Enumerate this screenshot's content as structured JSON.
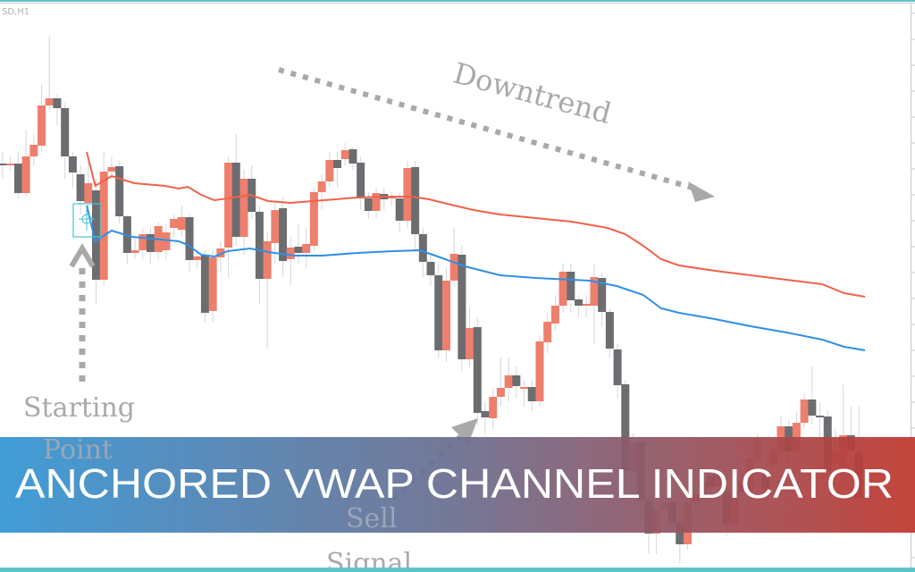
{
  "header": {
    "symbol_label": "SD,H1"
  },
  "annotations": {
    "downtrend": "Downtrend",
    "starting_1": "Starting",
    "starting_2": "Point",
    "sell_1": "Sell",
    "sell_2": "Signal"
  },
  "banner": {
    "title": "ANCHORED VWAP CHANNEL INDICATOR",
    "gradient_start": "#3596d4",
    "gradient_mid": "#6d6f90",
    "gradient_end": "#c0392f"
  },
  "colors": {
    "bull": "#ee7f6d",
    "bear": "#6b6d70",
    "upper_band": "#f0624a",
    "lower_band": "#2f8fe6",
    "anchor": "#45c3dc",
    "frame": "#5fc4c8",
    "annotation": "#a9a9a9"
  },
  "chart_data": {
    "type": "candlestick",
    "title": "",
    "xlabel": "",
    "ylabel": "",
    "grid": false,
    "candles_ohlc_note_fields": [
      "open",
      "close",
      "high",
      "low"
    ],
    "candles": [
      [
        457,
        455,
        470,
        440
      ],
      [
        455,
        457,
        465,
        450
      ],
      [
        457,
        424,
        470,
        418
      ],
      [
        424,
        465,
        495,
        420
      ],
      [
        465,
        478,
        490,
        455
      ],
      [
        477,
        522,
        545,
        470
      ],
      [
        522,
        530,
        600,
        515
      ],
      [
        530,
        519,
        535,
        500
      ],
      [
        519,
        465,
        525,
        440
      ],
      [
        465,
        447,
        470,
        430
      ],
      [
        445,
        415,
        455,
        400
      ],
      [
        413,
        435,
        460,
        405
      ],
      [
        427,
        327,
        440,
        300
      ],
      [
        327,
        448,
        470,
        320
      ],
      [
        448,
        453,
        465,
        440
      ],
      [
        454,
        398,
        460,
        390
      ],
      [
        398,
        357,
        400,
        345
      ],
      [
        357,
        360,
        375,
        350
      ],
      [
        360,
        378,
        385,
        350
      ],
      [
        378,
        358,
        385,
        345
      ],
      [
        358,
        387,
        392,
        350
      ],
      [
        360,
        380,
        390,
        350
      ],
      [
        385,
        395,
        400,
        375
      ],
      [
        383,
        397,
        410,
        375
      ],
      [
        397,
        349,
        400,
        335
      ],
      [
        349,
        353,
        360,
        340
      ],
      [
        354,
        290,
        360,
        280
      ],
      [
        292,
        352,
        360,
        280
      ],
      [
        352,
        362,
        370,
        335
      ],
      [
        363,
        458,
        465,
        330
      ],
      [
        458,
        375,
        490,
        365
      ],
      [
        375,
        440,
        450,
        355
      ],
      [
        440,
        403,
        455,
        395
      ],
      [
        403,
        328,
        410,
        300
      ],
      [
        328,
        370,
        380,
        250
      ],
      [
        368,
        405,
        415,
        345
      ],
      [
        407,
        348,
        420,
        330
      ],
      [
        350,
        363,
        375,
        320
      ],
      [
        364,
        357,
        390,
        345
      ],
      [
        357,
        367,
        385,
        340
      ],
      [
        365,
        425,
        430,
        360
      ],
      [
        425,
        437,
        445,
        405
      ],
      [
        437,
        461,
        470,
        430
      ],
      [
        461,
        452,
        470,
        430
      ],
      [
        462,
        472,
        480,
        455
      ],
      [
        473,
        457,
        475,
        450
      ],
      [
        458,
        418,
        465,
        405
      ],
      [
        418,
        404,
        425,
        395
      ],
      [
        404,
        424,
        430,
        395
      ],
      [
        423,
        417,
        430,
        405
      ],
      [
        419,
        420,
        425,
        410
      ],
      [
        418,
        393,
        425,
        380
      ],
      [
        393,
        452,
        460,
        385
      ],
      [
        453,
        378,
        460,
        360
      ],
      [
        378,
        347,
        385,
        330
      ],
      [
        347,
        332,
        355,
        320
      ],
      [
        332,
        248,
        345,
        240
      ],
      [
        248,
        326,
        340,
        235
      ],
      [
        326,
        356,
        385,
        320
      ],
      [
        355,
        238,
        365,
        225
      ],
      [
        238,
        273,
        295,
        230
      ],
      [
        274,
        178,
        285,
        165
      ],
      [
        180,
        173,
        190,
        155
      ],
      [
        172,
        196,
        205,
        160
      ],
      [
        196,
        206,
        240,
        185
      ],
      [
        206,
        220,
        240,
        190
      ],
      [
        220,
        208,
        230,
        195
      ],
      [
        206,
        207,
        215,
        185
      ],
      [
        207,
        191,
        215,
        180
      ],
      [
        191,
        258,
        265,
        185
      ],
      [
        257,
        280,
        290,
        245
      ],
      [
        278,
        298,
        310,
        270
      ],
      [
        298,
        336,
        345,
        290
      ],
      [
        336,
        304,
        345,
        290
      ],
      [
        305,
        298,
        310,
        285
      ],
      [
        298,
        300,
        310,
        285
      ],
      [
        298,
        330,
        345,
        255
      ],
      [
        329,
        291,
        335,
        275
      ],
      [
        291,
        250,
        295,
        240
      ],
      [
        249,
        209,
        255,
        195
      ],
      [
        210,
        113,
        215,
        100
      ],
      [
        113,
        145,
        155,
        100
      ],
      [
        145,
        80,
        150,
        65
      ],
      [
        80,
        43,
        85,
        20
      ],
      [
        43,
        70,
        75,
        20
      ],
      [
        70,
        78,
        85,
        55
      ],
      [
        78,
        55,
        85,
        45
      ],
      [
        55,
        31,
        60,
        10
      ],
      [
        31,
        78,
        85,
        25
      ],
      [
        78,
        87,
        95,
        70
      ],
      [
        87,
        100,
        110,
        80
      ],
      [
        108,
        95,
        115,
        85
      ],
      [
        95,
        110,
        120,
        85
      ],
      [
        90,
        53,
        95,
        40
      ],
      [
        53,
        90,
        100,
        45
      ],
      [
        100,
        90,
        110,
        85
      ],
      [
        90,
        127,
        135,
        80
      ],
      [
        127,
        147,
        155,
        115
      ],
      [
        108,
        92,
        115,
        80
      ],
      [
        120,
        135,
        145,
        110
      ],
      [
        135,
        163,
        175,
        125
      ],
      [
        163,
        135,
        170,
        120
      ],
      [
        135,
        167,
        180,
        130
      ],
      [
        167,
        193,
        200,
        160
      ],
      [
        193,
        175,
        230,
        165
      ],
      [
        175,
        173,
        190,
        110
      ],
      [
        174,
        113,
        180,
        100
      ],
      [
        120,
        135,
        160,
        110
      ],
      [
        113,
        153,
        210,
        100
      ],
      [
        153,
        136,
        185,
        120
      ],
      [
        135,
        83,
        185,
        70
      ]
    ],
    "series": [
      {
        "points": [
          [
            10.8,
            470
          ],
          [
            11.9,
            432
          ],
          [
            14.0,
            443
          ],
          [
            16.9,
            435
          ],
          [
            20.9,
            432
          ],
          [
            22.6,
            429
          ],
          [
            23.8,
            431
          ],
          [
            25.5,
            422
          ],
          [
            27.2,
            416
          ],
          [
            28.9,
            418
          ],
          [
            31.8,
            422
          ],
          [
            34.1,
            415
          ],
          [
            37.0,
            413
          ],
          [
            39.8,
            415
          ],
          [
            45.6,
            419
          ],
          [
            49.0,
            420
          ],
          [
            52.5,
            420
          ],
          [
            54.8,
            417
          ],
          [
            57.1,
            412
          ],
          [
            60.5,
            405
          ],
          [
            63.9,
            400
          ],
          [
            68.5,
            396
          ],
          [
            73.1,
            392
          ],
          [
            77.7,
            385
          ],
          [
            80.0,
            378
          ],
          [
            82.3,
            365
          ],
          [
            84.6,
            350
          ],
          [
            86.9,
            343
          ],
          [
            91.5,
            337
          ],
          [
            96.1,
            332
          ],
          [
            100.7,
            327
          ],
          [
            105.3,
            322
          ],
          [
            108.1,
            312
          ],
          [
            110.8,
            308
          ]
        ]
      },
      {
        "points": [
          [
            10.8,
            410
          ],
          [
            11.9,
            370
          ],
          [
            14.0,
            382
          ],
          [
            16.6,
            375
          ],
          [
            19.2,
            373
          ],
          [
            22.6,
            370
          ],
          [
            23.8,
            366
          ],
          [
            25.5,
            355
          ],
          [
            27.2,
            353
          ],
          [
            28.9,
            359
          ],
          [
            31.8,
            362
          ],
          [
            34.1,
            358
          ],
          [
            37.5,
            354
          ],
          [
            41.0,
            354
          ],
          [
            45.6,
            357
          ],
          [
            50.2,
            359
          ],
          [
            53.6,
            360
          ],
          [
            55.9,
            353
          ],
          [
            59.4,
            342
          ],
          [
            63.9,
            332
          ],
          [
            68.5,
            329
          ],
          [
            73.1,
            327
          ],
          [
            75.4,
            326
          ],
          [
            78.9,
            320
          ],
          [
            82.3,
            310
          ],
          [
            84.6,
            295
          ],
          [
            86.9,
            290
          ],
          [
            91.5,
            283
          ],
          [
            96.1,
            275
          ],
          [
            100.7,
            268
          ],
          [
            105.3,
            260
          ],
          [
            108.1,
            252
          ],
          [
            110.8,
            248
          ]
        ]
      }
    ]
  }
}
